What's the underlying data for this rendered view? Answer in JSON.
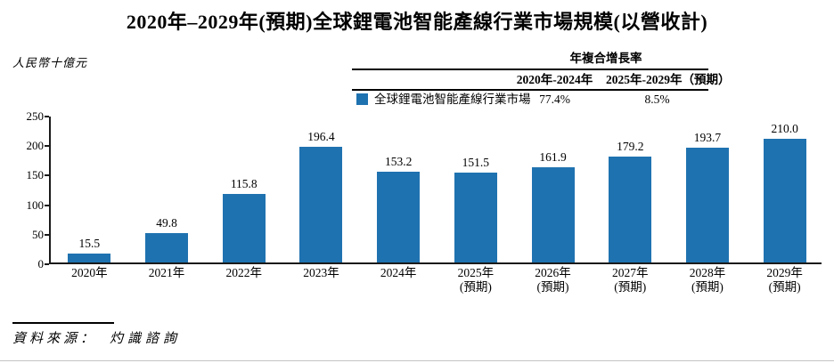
{
  "page": {
    "title": "2020年–2029年(預期)全球鋰電池智能產線行業市場規模(以營收計)",
    "y_axis_unit": "人民幣十億元",
    "source_label": "資料來源：",
    "source_value": "灼識諮詢"
  },
  "cagr_table": {
    "title": "年複合增長率",
    "columns": [
      "2020年-2024年",
      "2025年-2029年（預期）"
    ],
    "rows": [
      {
        "legend": "全球鋰電池智能產線行業市場",
        "swatch_color": "#1F72B0",
        "values": [
          "77.4%",
          "8.5%"
        ]
      }
    ]
  },
  "chart_data": {
    "type": "bar",
    "title": "2020年–2029年(預期)全球鋰電池智能產線行業市場規模(以營收計)",
    "ylabel": "人民幣十億元",
    "xlabel": "",
    "ylim": [
      0,
      250
    ],
    "yticks": [
      0,
      50,
      100,
      150,
      200,
      250
    ],
    "grid": false,
    "bar_color": "#1F72B0",
    "legend_entries": [
      "全球鋰電池智能產線行業市場"
    ],
    "legend_position": "top",
    "categories": [
      "2020年",
      "2021年",
      "2022年",
      "2023年",
      "2024年",
      "2025年(預期)",
      "2026年(預期)",
      "2027年(預期)",
      "2028年(預期)",
      "2029年(預期)"
    ],
    "category_lines": [
      [
        "2020年"
      ],
      [
        "2021年"
      ],
      [
        "2022年"
      ],
      [
        "2023年"
      ],
      [
        "2024年"
      ],
      [
        "2025年",
        "(預期)"
      ],
      [
        "2026年",
        "(預期)"
      ],
      [
        "2027年",
        "(預期)"
      ],
      [
        "2028年",
        "(預期)"
      ],
      [
        "2029年",
        "(預期)"
      ]
    ],
    "values": [
      15.5,
      49.8,
      115.8,
      196.4,
      153.2,
      151.5,
      161.9,
      179.2,
      193.7,
      210.0
    ],
    "value_labels": [
      "15.5",
      "49.8",
      "115.8",
      "196.4",
      "153.2",
      "151.5",
      "161.9",
      "179.2",
      "193.7",
      "210.0"
    ],
    "cagr": {
      "2020年-2024年": "77.4%",
      "2025年-2029年（預期）": "8.5%"
    }
  }
}
